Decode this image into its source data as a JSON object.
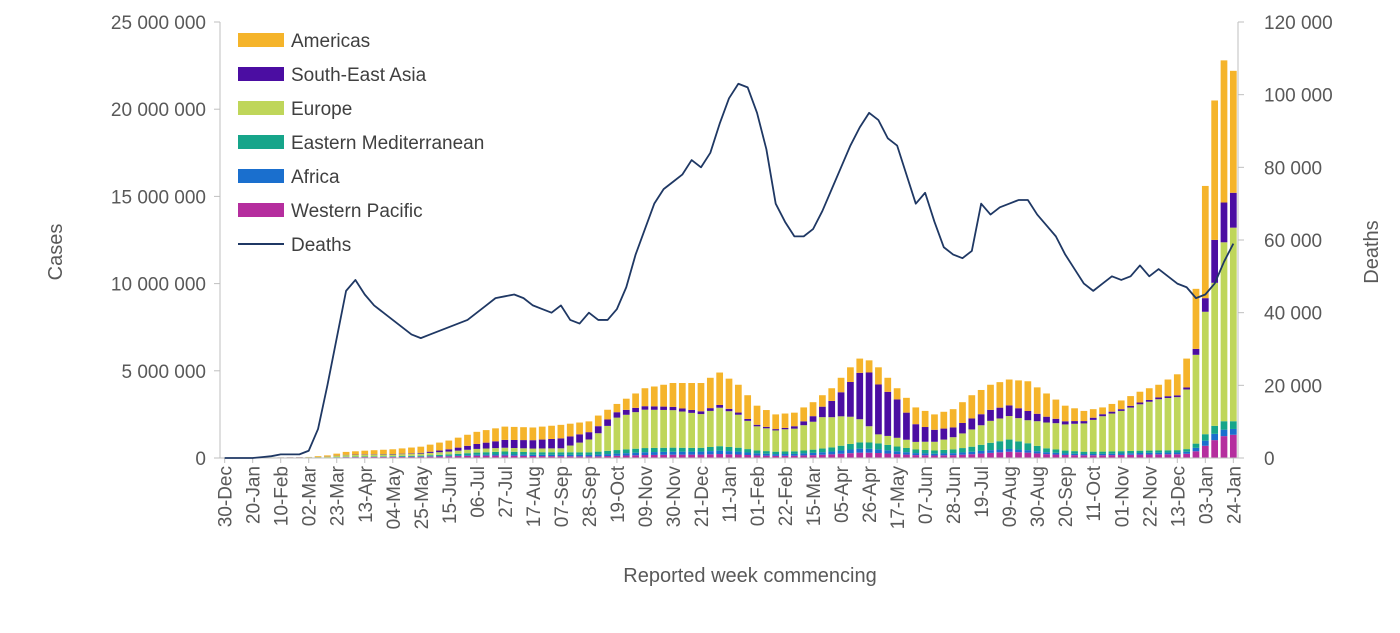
{
  "chart_data": {
    "type": "bar",
    "stacked": true,
    "secondary_type": "line",
    "xlabel": "Reported week commencing",
    "ylabel": "Cases",
    "y2label": "Deaths",
    "ylim": [
      0,
      25000000
    ],
    "y2lim": [
      0,
      120000
    ],
    "yticks": [
      {
        "value": 0,
        "label": "0"
      },
      {
        "value": 5000000,
        "label": "5 000 000"
      },
      {
        "value": 10000000,
        "label": "10 000 000"
      },
      {
        "value": 15000000,
        "label": "15 000 000"
      },
      {
        "value": 20000000,
        "label": "20 000 000"
      },
      {
        "value": 25000000,
        "label": "25 000 000"
      }
    ],
    "y2ticks": [
      {
        "value": 0,
        "label": "0"
      },
      {
        "value": 20000,
        "label": "20 000"
      },
      {
        "value": 40000,
        "label": "40 000"
      },
      {
        "value": 60000,
        "label": "60 000"
      },
      {
        "value": 80000,
        "label": "80 000"
      },
      {
        "value": 100000,
        "label": "100 000"
      },
      {
        "value": 120000,
        "label": "120 000"
      }
    ],
    "xtick_labels": [
      {
        "index": 0,
        "label": "30-Dec"
      },
      {
        "index": 3,
        "label": "20-Jan"
      },
      {
        "index": 6,
        "label": "10-Feb"
      },
      {
        "index": 9,
        "label": "02-Mar"
      },
      {
        "index": 12,
        "label": "23-Mar"
      },
      {
        "index": 15,
        "label": "13-Apr"
      },
      {
        "index": 18,
        "label": "04-May"
      },
      {
        "index": 21,
        "label": "25-May"
      },
      {
        "index": 24,
        "label": "15-Jun"
      },
      {
        "index": 27,
        "label": "06-Jul"
      },
      {
        "index": 30,
        "label": "27-Jul"
      },
      {
        "index": 33,
        "label": "17-Aug"
      },
      {
        "index": 36,
        "label": "07-Sep"
      },
      {
        "index": 39,
        "label": "28-Sep"
      },
      {
        "index": 42,
        "label": "19-Oct"
      },
      {
        "index": 45,
        "label": "09-Nov"
      },
      {
        "index": 48,
        "label": "30-Nov"
      },
      {
        "index": 51,
        "label": "21-Dec"
      },
      {
        "index": 54,
        "label": "11-Jan"
      },
      {
        "index": 57,
        "label": "01-Feb"
      },
      {
        "index": 60,
        "label": "22-Feb"
      },
      {
        "index": 63,
        "label": "15-Mar"
      },
      {
        "index": 66,
        "label": "05-Apr"
      },
      {
        "index": 69,
        "label": "26-Apr"
      },
      {
        "index": 72,
        "label": "17-May"
      },
      {
        "index": 75,
        "label": "07-Jun"
      },
      {
        "index": 78,
        "label": "28-Jun"
      },
      {
        "index": 81,
        "label": "19-Jul"
      },
      {
        "index": 84,
        "label": "09-Aug"
      },
      {
        "index": 87,
        "label": "30-Aug"
      },
      {
        "index": 90,
        "label": "20-Sep"
      },
      {
        "index": 93,
        "label": "11-Oct"
      },
      {
        "index": 96,
        "label": "01-Nov"
      },
      {
        "index": 99,
        "label": "22-Nov"
      },
      {
        "index": 102,
        "label": "13-Dec"
      },
      {
        "index": 105,
        "label": "03-Jan"
      },
      {
        "index": 108,
        "label": "24-Jan"
      }
    ],
    "n_weeks": 109,
    "legend": [
      {
        "name": "Americas",
        "kind": "bar",
        "color": "#F5B42A"
      },
      {
        "name": "South-East Asia",
        "kind": "bar",
        "color": "#4B0DA2"
      },
      {
        "name": "Europe",
        "kind": "bar",
        "color": "#BFD65A"
      },
      {
        "name": "Eastern Mediterranean",
        "kind": "bar",
        "color": "#16A58A"
      },
      {
        "name": "Africa",
        "kind": "bar",
        "color": "#1A6FCE"
      },
      {
        "name": "Western Pacific",
        "kind": "bar",
        "color": "#B52E9E"
      },
      {
        "name": "Deaths",
        "kind": "line",
        "color": "#1F3864"
      }
    ],
    "stack_order": [
      "Western Pacific",
      "Africa",
      "Eastern Mediterranean",
      "Europe",
      "South-East Asia",
      "Americas"
    ],
    "total_cases_anchors": [
      [
        0,
        0
      ],
      [
        9,
        60000
      ],
      [
        11,
        150000
      ],
      [
        12,
        250000
      ],
      [
        13,
        350000
      ],
      [
        15,
        420000
      ],
      [
        18,
        500000
      ],
      [
        21,
        650000
      ],
      [
        24,
        1000000
      ],
      [
        27,
        1500000
      ],
      [
        30,
        1800000
      ],
      [
        33,
        1750000
      ],
      [
        36,
        1900000
      ],
      [
        39,
        2100000
      ],
      [
        42,
        3100000
      ],
      [
        45,
        4000000
      ],
      [
        48,
        4300000
      ],
      [
        51,
        4300000
      ],
      [
        53,
        4900000
      ],
      [
        55,
        4200000
      ],
      [
        57,
        3000000
      ],
      [
        59,
        2500000
      ],
      [
        61,
        2600000
      ],
      [
        63,
        3200000
      ],
      [
        65,
        4000000
      ],
      [
        67,
        5200000
      ],
      [
        68,
        5700000
      ],
      [
        69,
        5600000
      ],
      [
        70,
        5200000
      ],
      [
        72,
        4000000
      ],
      [
        74,
        2900000
      ],
      [
        76,
        2500000
      ],
      [
        78,
        2800000
      ],
      [
        80,
        3600000
      ],
      [
        82,
        4200000
      ],
      [
        84,
        4500000
      ],
      [
        86,
        4400000
      ],
      [
        88,
        3700000
      ],
      [
        90,
        3000000
      ],
      [
        92,
        2700000
      ],
      [
        94,
        2900000
      ],
      [
        96,
        3300000
      ],
      [
        98,
        3800000
      ],
      [
        100,
        4200000
      ],
      [
        102,
        4800000
      ],
      [
        103,
        5700000
      ],
      [
        104,
        9700000
      ],
      [
        105,
        15600000
      ],
      [
        106,
        20500000
      ],
      [
        107,
        22800000
      ],
      [
        108,
        22200000
      ]
    ],
    "share_anchors": {
      "Western Pacific": [
        [
          0,
          0.95
        ],
        [
          8,
          0.8
        ],
        [
          10,
          0.15
        ],
        [
          40,
          0.04
        ],
        [
          80,
          0.06
        ],
        [
          84,
          0.08
        ],
        [
          88,
          0.06
        ],
        [
          100,
          0.05
        ],
        [
          104,
          0.04
        ],
        [
          106,
          0.05
        ],
        [
          108,
          0.06
        ]
      ],
      "Africa": [
        [
          0,
          0.0
        ],
        [
          10,
          0.01
        ],
        [
          30,
          0.04
        ],
        [
          50,
          0.04
        ],
        [
          80,
          0.04
        ],
        [
          88,
          0.03
        ],
        [
          104,
          0.02
        ],
        [
          108,
          0.015
        ]
      ],
      "Eastern Mediterranean": [
        [
          0,
          0.0
        ],
        [
          10,
          0.05
        ],
        [
          30,
          0.09
        ],
        [
          50,
          0.05
        ],
        [
          66,
          0.06
        ],
        [
          80,
          0.08
        ],
        [
          84,
          0.12
        ],
        [
          88,
          0.06
        ],
        [
          100,
          0.03
        ],
        [
          108,
          0.02
        ]
      ],
      "Europe": [
        [
          0,
          0.05
        ],
        [
          10,
          0.3
        ],
        [
          18,
          0.2
        ],
        [
          30,
          0.12
        ],
        [
          36,
          0.12
        ],
        [
          39,
          0.35
        ],
        [
          42,
          0.6
        ],
        [
          45,
          0.55
        ],
        [
          51,
          0.45
        ],
        [
          56,
          0.45
        ],
        [
          60,
          0.5
        ],
        [
          64,
          0.5
        ],
        [
          67,
          0.3
        ],
        [
          70,
          0.1
        ],
        [
          74,
          0.15
        ],
        [
          78,
          0.25
        ],
        [
          82,
          0.3
        ],
        [
          86,
          0.3
        ],
        [
          90,
          0.5
        ],
        [
          94,
          0.7
        ],
        [
          100,
          0.7
        ],
        [
          103,
          0.6
        ],
        [
          105,
          0.45
        ],
        [
          106,
          0.4
        ],
        [
          108,
          0.5
        ]
      ],
      "South-East Asia": [
        [
          0,
          0.0
        ],
        [
          10,
          0.05
        ],
        [
          20,
          0.05
        ],
        [
          30,
          0.25
        ],
        [
          36,
          0.3
        ],
        [
          39,
          0.2
        ],
        [
          42,
          0.1
        ],
        [
          45,
          0.05
        ],
        [
          54,
          0.03
        ],
        [
          60,
          0.03
        ],
        [
          63,
          0.1
        ],
        [
          66,
          0.3
        ],
        [
          69,
          0.55
        ],
        [
          72,
          0.55
        ],
        [
          74,
          0.35
        ],
        [
          78,
          0.2
        ],
        [
          82,
          0.15
        ],
        [
          86,
          0.12
        ],
        [
          90,
          0.06
        ],
        [
          96,
          0.03
        ],
        [
          103,
          0.02
        ],
        [
          105,
          0.05
        ],
        [
          106,
          0.12
        ],
        [
          107,
          0.1
        ],
        [
          108,
          0.09
        ]
      ]
    },
    "deaths_anchors": [
      [
        0,
        0
      ],
      [
        3,
        0
      ],
      [
        5,
        500
      ],
      [
        6,
        1000
      ],
      [
        8,
        1000
      ],
      [
        9,
        2000
      ],
      [
        10,
        8000
      ],
      [
        11,
        20000
      ],
      [
        12,
        33000
      ],
      [
        13,
        46000
      ],
      [
        14,
        49000
      ],
      [
        15,
        45000
      ],
      [
        16,
        42000
      ],
      [
        17,
        40000
      ],
      [
        18,
        38000
      ],
      [
        19,
        36000
      ],
      [
        20,
        34000
      ],
      [
        21,
        33000
      ],
      [
        22,
        34000
      ],
      [
        23,
        35000
      ],
      [
        24,
        36000
      ],
      [
        25,
        37000
      ],
      [
        26,
        38000
      ],
      [
        27,
        40000
      ],
      [
        28,
        42000
      ],
      [
        29,
        44000
      ],
      [
        31,
        45000
      ],
      [
        32,
        44000
      ],
      [
        33,
        42000
      ],
      [
        34,
        41000
      ],
      [
        35,
        40000
      ],
      [
        36,
        42000
      ],
      [
        37,
        38000
      ],
      [
        38,
        37000
      ],
      [
        39,
        40000
      ],
      [
        40,
        38000
      ],
      [
        41,
        38000
      ],
      [
        42,
        41000
      ],
      [
        43,
        47000
      ],
      [
        44,
        56000
      ],
      [
        45,
        63000
      ],
      [
        46,
        70000
      ],
      [
        47,
        74000
      ],
      [
        48,
        76000
      ],
      [
        49,
        78000
      ],
      [
        50,
        82000
      ],
      [
        51,
        80000
      ],
      [
        52,
        84000
      ],
      [
        53,
        92000
      ],
      [
        54,
        99000
      ],
      [
        55,
        103000
      ],
      [
        56,
        102000
      ],
      [
        57,
        95000
      ],
      [
        58,
        85000
      ],
      [
        59,
        70000
      ],
      [
        60,
        65000
      ],
      [
        61,
        61000
      ],
      [
        62,
        61000
      ],
      [
        63,
        63000
      ],
      [
        64,
        68000
      ],
      [
        65,
        74000
      ],
      [
        66,
        80000
      ],
      [
        67,
        86000
      ],
      [
        68,
        91000
      ],
      [
        69,
        95000
      ],
      [
        70,
        93000
      ],
      [
        71,
        88000
      ],
      [
        72,
        86000
      ],
      [
        73,
        78000
      ],
      [
        74,
        70000
      ],
      [
        75,
        73000
      ],
      [
        76,
        65000
      ],
      [
        77,
        58000
      ],
      [
        78,
        56000
      ],
      [
        79,
        55000
      ],
      [
        80,
        57000
      ],
      [
        81,
        70000
      ],
      [
        82,
        67000
      ],
      [
        83,
        69000
      ],
      [
        84,
        70000
      ],
      [
        85,
        71000
      ],
      [
        86,
        71000
      ],
      [
        87,
        67000
      ],
      [
        88,
        64000
      ],
      [
        89,
        61000
      ],
      [
        90,
        56000
      ],
      [
        91,
        52000
      ],
      [
        92,
        48000
      ],
      [
        93,
        46000
      ],
      [
        94,
        48000
      ],
      [
        95,
        50000
      ],
      [
        96,
        49000
      ],
      [
        97,
        50000
      ],
      [
        98,
        53000
      ],
      [
        99,
        50000
      ],
      [
        100,
        52000
      ],
      [
        101,
        50000
      ],
      [
        102,
        48000
      ],
      [
        103,
        47000
      ],
      [
        104,
        44000
      ],
      [
        105,
        45000
      ],
      [
        106,
        48000
      ],
      [
        107,
        54000
      ],
      [
        108,
        59000
      ]
    ]
  }
}
